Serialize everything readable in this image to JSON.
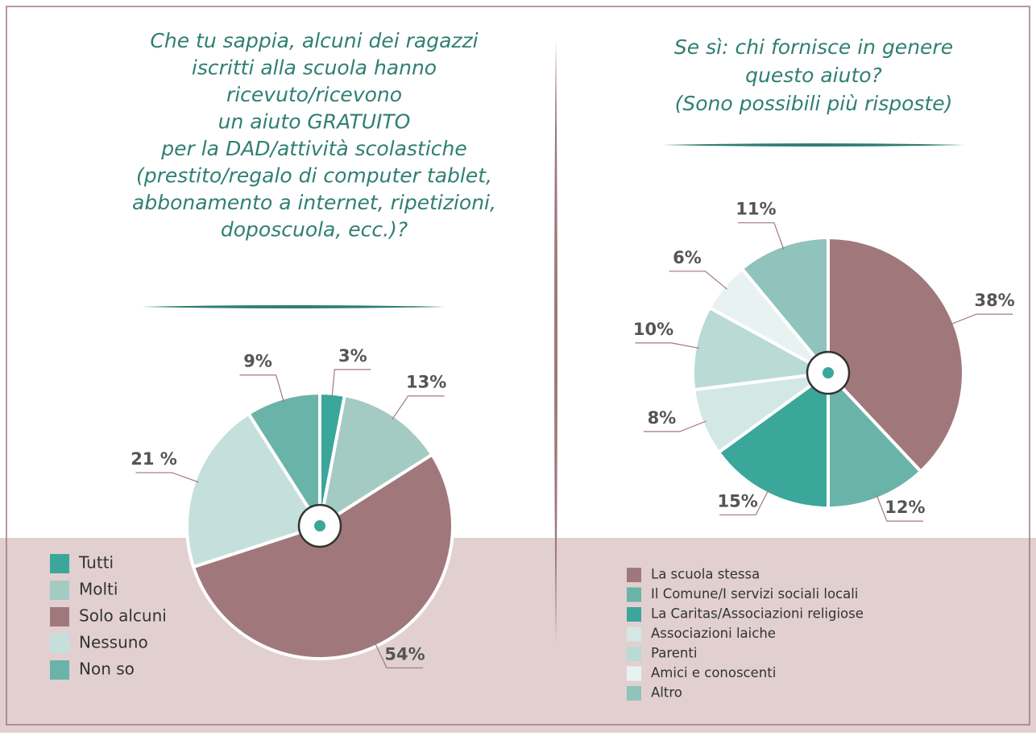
{
  "chart_data": [
    {
      "type": "pie",
      "title": [
        "Che tu sappia, alcuni dei ragazzi",
        "iscritti alla scuola hanno",
        "ricevuto/ricevono",
        "un aiuto GRATUITO",
        "per la DAD/attività scolastiche",
        "(prestito/regalo di computer tablet,",
        "abbonamento a internet, ripetizioni,",
        "doposcuola, ecc.)?"
      ],
      "categories": [
        "Tutti",
        "Molti",
        "Solo alcuni",
        "Nessuno",
        "Non so"
      ],
      "values": [
        3,
        13,
        54,
        21,
        9
      ],
      "value_labels": [
        "3%",
        "13%",
        "54%",
        "21 %",
        "9%"
      ],
      "colors": [
        "#3aa79a",
        "#a3cbc4",
        "#a0787c",
        "#c5e0dc",
        "#6ab3a9"
      ]
    },
    {
      "type": "pie",
      "title": [
        "Se sì: chi fornisce in genere",
        "questo aiuto?",
        "(Sono possibili più risposte)"
      ],
      "categories": [
        "La scuola stessa",
        "Il Comune/I servizi sociali locali",
        "La Caritas/Associazioni religiose",
        "Associazioni laiche",
        "Parenti",
        "Amici e conoscenti",
        "Altro"
      ],
      "values": [
        38,
        12,
        15,
        8,
        10,
        6,
        11
      ],
      "value_labels": [
        "38%",
        "12%",
        "15%",
        "8%",
        "10%",
        "6%",
        "11%"
      ],
      "colors": [
        "#a0787c",
        "#6ab3a9",
        "#3aa79a",
        "#d3e7e4",
        "#b9dad5",
        "#e8f2f1",
        "#8fc3bb"
      ]
    }
  ]
}
